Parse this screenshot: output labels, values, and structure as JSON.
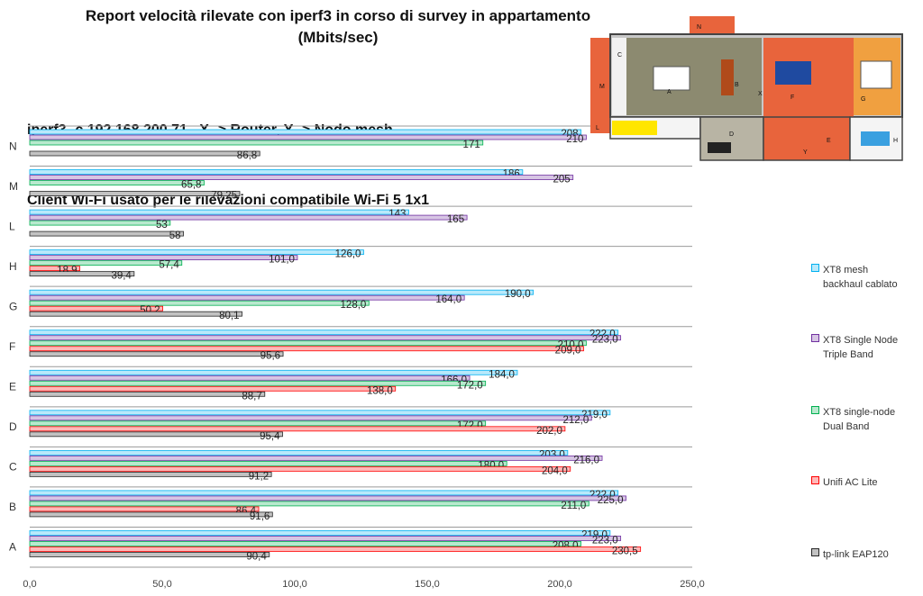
{
  "title_line1": "Report velocità rilevate con iperf3 in corso di survey in appartamento",
  "title_line2": "(Mbits/sec)",
  "cmd_line1": "iperf3 -c 192.168.200.71   X -> Router, Y -> Nodo mesh",
  "cmd_line2": "Client Wi-Fi usato per le rilevazioni compatibile Wi-Fi 5 1x1",
  "floorplan": {
    "rooms": [
      "N",
      "C",
      "A",
      "B",
      "X",
      "F",
      "G",
      "M",
      "L",
      "D",
      "E",
      "Y",
      "H"
    ]
  },
  "chart_data": {
    "type": "bar",
    "orientation": "horizontal",
    "categories": [
      "N",
      "M",
      "L",
      "H",
      "G",
      "F",
      "E",
      "D",
      "C",
      "B",
      "A"
    ],
    "xlim": [
      0,
      250
    ],
    "xticks": [
      "0,0",
      "50,0",
      "100,0",
      "150,0",
      "200,0",
      "250,0"
    ],
    "tick_values": [
      0,
      50,
      100,
      150,
      200,
      250
    ],
    "grid": true,
    "legend_position": "right",
    "series": [
      {
        "name": "XT8 mesh backhaul cablato",
        "color": "#00b0f0",
        "values": [
          208,
          186,
          143,
          126,
          190,
          222,
          184,
          219,
          203,
          222,
          219
        ],
        "labels": [
          "208",
          "186",
          "143",
          "126,0",
          "190,0",
          "222,0",
          "184,0",
          "219,0",
          "203,0",
          "222,0",
          "219,0"
        ]
      },
      {
        "name": "XT8 Single Node Triple Band",
        "color": "#7030a0",
        "values": [
          210,
          205,
          165,
          101,
          164,
          223,
          166,
          212,
          216,
          225,
          223
        ],
        "labels": [
          "210",
          "205",
          "165",
          "101,0",
          "164,0",
          "223,0",
          "166,0",
          "212,0",
          "216,0",
          "225,0",
          "223,0"
        ]
      },
      {
        "name": "XT8 single-node Dual Band",
        "color": "#00b050",
        "values": [
          171,
          65.8,
          53,
          57.4,
          128,
          210,
          172,
          172,
          180,
          211,
          208
        ],
        "labels": [
          "171",
          "65,8",
          "53",
          "57,4",
          "128,0",
          "210,0",
          "172,0",
          "172,0",
          "180,0",
          "211,0",
          "208,0"
        ]
      },
      {
        "name": "Unifi AC Lite",
        "color": "#ff0000",
        "values": [
          null,
          null,
          null,
          18.9,
          50.2,
          209,
          138,
          202,
          204,
          86.4,
          230.5
        ],
        "labels": [
          "",
          "",
          "",
          "18,9",
          "50,2",
          "209,0",
          "138,0",
          "202,0",
          "204,0",
          "86,4",
          "230,5"
        ]
      },
      {
        "name": "tp-link EAP120",
        "color": "#262626",
        "values": [
          86.8,
          79.25,
          58,
          39.4,
          80.1,
          95.6,
          88.7,
          95.4,
          91.2,
          91.6,
          90.4
        ],
        "labels": [
          "86,8",
          "79,25",
          "58",
          "39,4",
          "80,1",
          "95,6",
          "88,7",
          "95,4",
          "91,2",
          "91,6",
          "90,4"
        ]
      }
    ],
    "legend": [
      {
        "line1": "XT8 mesh",
        "line2": "backhaul cablato"
      },
      {
        "line1": "XT8 Single Node",
        "line2": "Triple Band"
      },
      {
        "line1": "XT8 single-node",
        "line2": "Dual Band"
      },
      {
        "line1": "Unifi AC Lite",
        "line2": ""
      },
      {
        "line1": "tp-link EAP120",
        "line2": ""
      }
    ]
  }
}
